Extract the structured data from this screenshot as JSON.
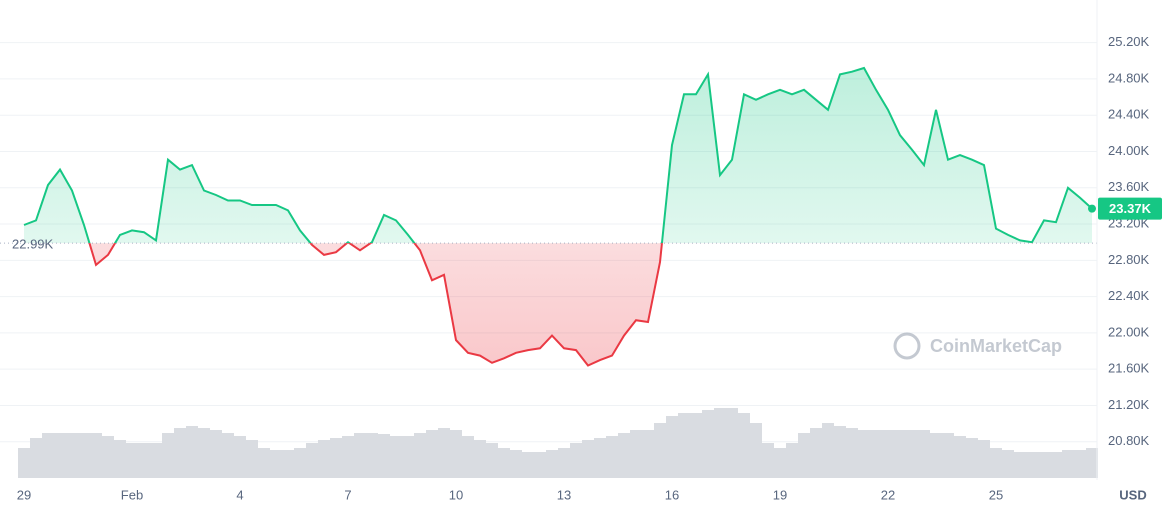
{
  "chart_data": {
    "type": "line",
    "categories": [
      "29",
      null,
      null,
      null,
      null,
      null,
      null,
      null,
      null,
      "Feb",
      null,
      null,
      null,
      null,
      null,
      null,
      null,
      null,
      "4",
      null,
      null,
      null,
      null,
      null,
      null,
      null,
      null,
      "7",
      null,
      null,
      null,
      null,
      null,
      null,
      null,
      null,
      "10",
      null,
      null,
      null,
      null,
      null,
      null,
      null,
      null,
      "13",
      null,
      null,
      null,
      null,
      null,
      null,
      null,
      null,
      "16",
      null,
      null,
      null,
      null,
      null,
      null,
      null,
      null,
      "19",
      null,
      null,
      null,
      null,
      null,
      null,
      null,
      null,
      "22",
      null,
      null,
      null,
      null,
      null,
      null,
      null,
      null,
      "25",
      null,
      null,
      null,
      null,
      null,
      null,
      null,
      null
    ],
    "series": [
      {
        "name": "Price",
        "color": "#16c784",
        "color_below": "#ea3943",
        "values": [
          23190,
          23240,
          23630,
          23800,
          23570,
          23190,
          22750,
          22860,
          23080,
          23130,
          23110,
          23020,
          23910,
          23800,
          23850,
          23570,
          23520,
          23460,
          23460,
          23410,
          23410,
          23410,
          23350,
          23130,
          22970,
          22860,
          22890,
          23000,
          22910,
          23000,
          23300,
          23240,
          23080,
          22910,
          22580,
          22640,
          21920,
          21780,
          21750,
          21670,
          21720,
          21780,
          21810,
          21830,
          21970,
          21830,
          21810,
          21640,
          21700,
          21750,
          21970,
          22140,
          22120,
          22780,
          24070,
          24630,
          24630,
          24850,
          23740,
          23910,
          24630,
          24570,
          24630,
          24680,
          24630,
          24680,
          24570,
          24460,
          24850,
          24880,
          24920,
          24680,
          24460,
          24180,
          24020,
          23850,
          24460,
          23910,
          23960,
          23910,
          23850,
          23150,
          23080,
          23020,
          23000,
          23240,
          23220,
          23600,
          23490,
          23370
        ]
      },
      {
        "name": "Volume",
        "color": "#d9dce1",
        "values": [
          30,
          40,
          45,
          45,
          45,
          45,
          45,
          42,
          38,
          35,
          35,
          35,
          45,
          50,
          52,
          50,
          48,
          45,
          42,
          38,
          30,
          28,
          28,
          30,
          35,
          38,
          40,
          42,
          45,
          45,
          44,
          42,
          42,
          45,
          48,
          50,
          48,
          42,
          38,
          35,
          30,
          28,
          26,
          26,
          28,
          30,
          35,
          38,
          40,
          42,
          45,
          48,
          48,
          55,
          62,
          65,
          65,
          68,
          70,
          70,
          65,
          55,
          35,
          30,
          35,
          45,
          50,
          55,
          52,
          50,
          48,
          48,
          48,
          48,
          48,
          48,
          45,
          45,
          42,
          40,
          38,
          30,
          28,
          26,
          26,
          26,
          26,
          28,
          28,
          30
        ]
      }
    ],
    "baseline": {
      "value": 22990,
      "label": "22.99K"
    },
    "current_price": {
      "value": 23370,
      "label": "23.37K"
    },
    "ylim": [
      20400,
      25560
    ],
    "yticks": [
      {
        "value": 25200,
        "label": "25.20K"
      },
      {
        "value": 24800,
        "label": "24.80K"
      },
      {
        "value": 24400,
        "label": "24.40K"
      },
      {
        "value": 24000,
        "label": "24.00K"
      },
      {
        "value": 23600,
        "label": "23.60K"
      },
      {
        "value": 23200,
        "label": "23.20K"
      },
      {
        "value": 22800,
        "label": "22.80K"
      },
      {
        "value": 22400,
        "label": "22.40K"
      },
      {
        "value": 22000,
        "label": "22.00K"
      },
      {
        "value": 21600,
        "label": "21.60K"
      },
      {
        "value": 21200,
        "label": "21.20K"
      },
      {
        "value": 20800,
        "label": "20.80K"
      }
    ],
    "grid": true,
    "currency": "USD",
    "watermark": "CoinMarketCap"
  }
}
